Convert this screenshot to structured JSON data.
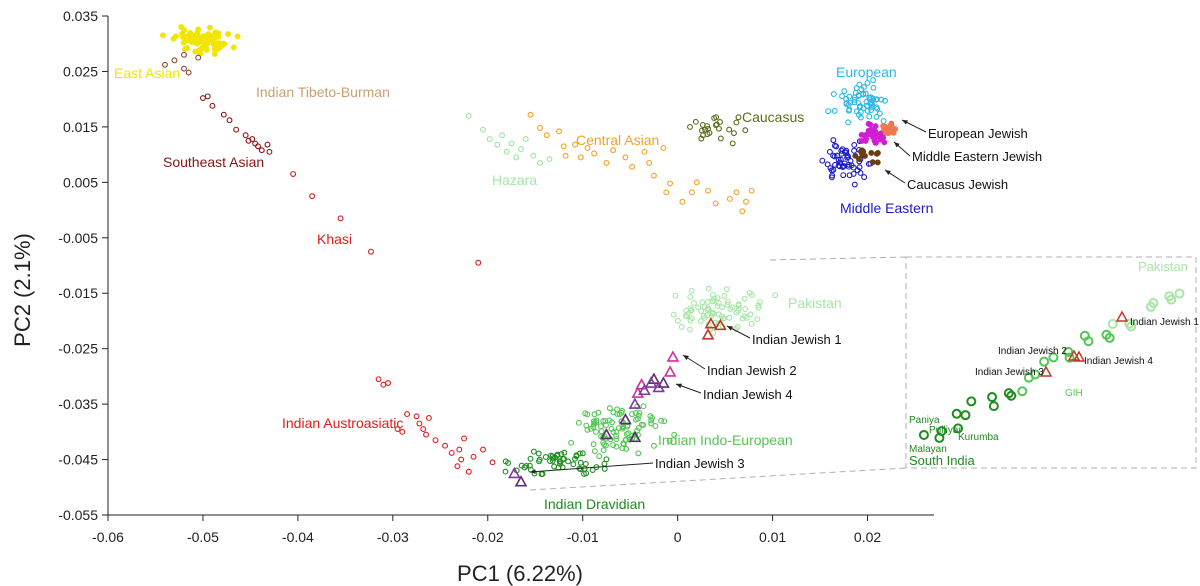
{
  "chart_data": {
    "type": "scatter",
    "title": "",
    "xlabel": "PC1 (6.22%)",
    "ylabel": "PC2 (2.1%)",
    "xlim": [
      -0.06,
      0.027
    ],
    "ylim": [
      -0.055,
      0.035
    ],
    "x_ticks": [
      -0.06,
      -0.05,
      -0.04,
      -0.03,
      -0.02,
      -0.01,
      0,
      0.01,
      0.02
    ],
    "x_tick_labels": [
      "-0.06",
      "-0.05",
      "-0.04",
      "-0.03",
      "-0.02",
      "-0.01",
      "0",
      "0.01",
      "0.02"
    ],
    "y_ticks": [
      0.035,
      0.025,
      0.015,
      0.005,
      -0.005,
      -0.015,
      -0.025,
      -0.035,
      -0.045,
      -0.055
    ],
    "y_tick_labels": [
      "0.035",
      "0.025",
      "0.015",
      "0.005",
      "-0.005",
      "-0.015",
      "-0.025",
      "-0.035",
      "-0.045",
      "-0.055"
    ],
    "grid": false,
    "series": [
      {
        "name": "East Asian",
        "color": "#f2e600",
        "filled": true,
        "center": [
          -0.05,
          0.0305
        ],
        "spread": [
          0.0032,
          0.0022
        ],
        "count": 70
      },
      {
        "name": "Indian Tibeto-Burman",
        "color": "#8b4a2a",
        "filled": false,
        "points": [
          [
            -0.053,
            0.027
          ],
          [
            -0.052,
            0.0255
          ],
          [
            -0.0505,
            0.0275
          ],
          [
            -0.054,
            0.0262
          ],
          [
            -0.0515,
            0.0248
          ],
          [
            -0.052,
            0.028
          ]
        ]
      },
      {
        "name": "Southeast Asian",
        "color": "#8b1414",
        "filled": false,
        "points": [
          [
            -0.05,
            0.0202
          ],
          [
            -0.0495,
            0.0205
          ],
          [
            -0.049,
            0.0188
          ],
          [
            -0.0478,
            0.0172
          ],
          [
            -0.0472,
            0.0162
          ],
          [
            -0.0465,
            0.0145
          ],
          [
            -0.0455,
            0.0135
          ],
          [
            -0.0448,
            0.0128
          ],
          [
            -0.0442,
            0.0115
          ],
          [
            -0.0438,
            0.0108
          ],
          [
            -0.0432,
            0.0118
          ],
          [
            -0.043,
            0.0105
          ],
          [
            -0.0445,
            0.012
          ],
          [
            -0.0452,
            0.0125
          ]
        ]
      },
      {
        "name": "Khasi",
        "color": "#cc1f1f",
        "filled": false,
        "points": [
          [
            -0.0405,
            0.0065
          ],
          [
            -0.0385,
            0.0025
          ],
          [
            -0.0355,
            -0.0015
          ],
          [
            -0.0323,
            -0.0075
          ],
          [
            -0.021,
            -0.0095
          ]
        ]
      },
      {
        "name": "Indian Austroasiatic",
        "color": "#e31a1c",
        "filled": false,
        "points": [
          [
            -0.0315,
            -0.0305
          ],
          [
            -0.031,
            -0.0315
          ],
          [
            -0.0305,
            -0.0312
          ],
          [
            -0.0285,
            -0.0368
          ],
          [
            -0.0275,
            -0.0372
          ],
          [
            -0.0272,
            -0.0385
          ],
          [
            -0.0268,
            -0.0395
          ],
          [
            -0.0265,
            -0.0405
          ],
          [
            -0.0262,
            -0.0375
          ],
          [
            -0.0255,
            -0.0415
          ],
          [
            -0.0295,
            -0.0395
          ],
          [
            -0.029,
            -0.04
          ],
          [
            -0.0245,
            -0.0425
          ],
          [
            -0.0238,
            -0.0438
          ],
          [
            -0.023,
            -0.0432
          ],
          [
            -0.0225,
            -0.0412
          ],
          [
            -0.0205,
            -0.0432
          ],
          [
            -0.0215,
            -0.0445
          ],
          [
            -0.0232,
            -0.0462
          ],
          [
            -0.022,
            -0.0472
          ],
          [
            -0.0195,
            -0.0455
          ],
          [
            -0.0228,
            -0.045
          ]
        ]
      },
      {
        "name": "Central Asian",
        "color": "#f4a023",
        "filled": false,
        "points": [
          [
            -0.0155,
            0.0172
          ],
          [
            -0.0145,
            0.0148
          ],
          [
            -0.0138,
            0.0135
          ],
          [
            -0.0125,
            0.0142
          ],
          [
            -0.012,
            0.0115
          ],
          [
            -0.0118,
            0.0098
          ],
          [
            -0.0108,
            0.0118
          ],
          [
            -0.0102,
            0.0095
          ],
          [
            -0.0095,
            0.0112
          ],
          [
            -0.0088,
            0.0102
          ],
          [
            -0.0075,
            0.0085
          ],
          [
            -0.0068,
            0.0108
          ],
          [
            -0.0055,
            0.0095
          ],
          [
            -0.0048,
            0.0078
          ],
          [
            -0.0035,
            0.0105
          ],
          [
            -0.003,
            0.0085
          ],
          [
            -0.0015,
            0.0112
          ],
          [
            -0.0025,
            0.0062
          ],
          [
            -0.0008,
            0.0048
          ],
          [
            0.0005,
            0.0015
          ],
          [
            0.0015,
            0.0032
          ],
          [
            0.002,
            0.005
          ],
          [
            0.0032,
            0.0035
          ],
          [
            0.004,
            0.0012
          ],
          [
            0.0055,
            0.002
          ],
          [
            0.0062,
            0.0032
          ],
          [
            0.0068,
            -0.0002
          ],
          [
            0.0072,
            0.0015
          ],
          [
            0.0078,
            0.0035
          ],
          [
            -0.0012,
            0.0032
          ]
        ]
      },
      {
        "name": "Caucasus",
        "color": "#5a6e1e",
        "filled": false,
        "center": [
          0.0035,
          0.0148
        ],
        "spread": [
          0.0035,
          0.0022
        ],
        "count": 24
      },
      {
        "name": "Hazara",
        "color": "#9be59b",
        "filled": false,
        "points": [
          [
            -0.022,
            0.017
          ],
          [
            -0.0205,
            0.0145
          ],
          [
            -0.0198,
            0.0128
          ],
          [
            -0.019,
            0.0118
          ],
          [
            -0.0185,
            0.0135
          ],
          [
            -0.018,
            0.0105
          ],
          [
            -0.0175,
            0.012
          ],
          [
            -0.017,
            0.0095
          ],
          [
            -0.0165,
            0.011
          ],
          [
            -0.016,
            0.0128
          ],
          [
            -0.0152,
            0.0098
          ],
          [
            -0.0145,
            0.0085
          ],
          [
            -0.0135,
            0.0092
          ]
        ]
      },
      {
        "name": "European",
        "color": "#29b8e6",
        "filled": false,
        "center": [
          0.0195,
          0.0195
        ],
        "spread": [
          0.0028,
          0.0032
        ],
        "count": 60
      },
      {
        "name": "Middle Eastern",
        "color": "#1b1bc7",
        "filled": false,
        "center": [
          0.018,
          0.0085
        ],
        "spread": [
          0.0022,
          0.0032
        ],
        "count": 55
      },
      {
        "name": "European Jewish",
        "color": "#f07850",
        "filled": true,
        "center": [
          0.0222,
          0.0148
        ],
        "spread": [
          0.0008,
          0.0012
        ],
        "count": 14
      },
      {
        "name": "Middle Eastern Jewish",
        "color": "#d21ed2",
        "filled": true,
        "center": [
          0.0205,
          0.0135
        ],
        "spread": [
          0.0015,
          0.0018
        ],
        "count": 30
      },
      {
        "name": "Caucasus Jewish",
        "color": "#6b3d10",
        "filled": true,
        "center": [
          0.0198,
          0.0098
        ],
        "spread": [
          0.0012,
          0.0012
        ],
        "count": 14
      },
      {
        "name": "Pakistan",
        "color": "#a6e6a6",
        "filled": false,
        "center": [
          0.0035,
          -0.0185
        ],
        "spread": [
          0.0055,
          0.004
        ],
        "count": 80
      },
      {
        "name": "Indian Indo-European",
        "color": "#55c555",
        "filled": false,
        "center": [
          -0.006,
          -0.0395
        ],
        "spread": [
          0.0045,
          0.0042
        ],
        "count": 95
      },
      {
        "name": "Indian Dravidian",
        "color": "#1e8c1e",
        "filled": false,
        "center": [
          -0.0125,
          -0.0455
        ],
        "spread": [
          0.0045,
          0.0025
        ],
        "count": 55
      },
      {
        "name": "Indian Jewish 1",
        "color": "#c0392b",
        "marker": "triangle",
        "filled": false,
        "points": [
          [
            0.0035,
            -0.0205
          ],
          [
            0.0045,
            -0.0208
          ],
          [
            0.0032,
            -0.0225
          ]
        ]
      },
      {
        "name": "Indian Jewish 2",
        "color": "#d2309c",
        "marker": "triangle",
        "filled": false,
        "points": [
          [
            -0.0005,
            -0.0265
          ],
          [
            -0.0038,
            -0.0315
          ],
          [
            -0.0042,
            -0.033
          ],
          [
            -0.0008,
            -0.0292
          ]
        ]
      },
      {
        "name": "Indian Jewish 3",
        "color": "#5a2e6e",
        "marker": "triangle",
        "filled": false,
        "points": [
          [
            -0.0015,
            -0.0312
          ],
          [
            -0.0025,
            -0.0305
          ],
          [
            -0.0055,
            -0.0378
          ],
          [
            -0.0075,
            -0.0405
          ],
          [
            -0.0045,
            -0.041
          ],
          [
            -0.0165,
            -0.049
          ]
        ]
      },
      {
        "name": "Indian Jewish 4",
        "color": "#7c3a9c",
        "marker": "triangle",
        "filled": false,
        "points": [
          [
            -0.0028,
            -0.0312
          ],
          [
            -0.002,
            -0.032
          ],
          [
            -0.0035,
            -0.0325
          ],
          [
            -0.0045,
            -0.035
          ],
          [
            -0.0172,
            -0.0475
          ]
        ]
      }
    ],
    "labels": [
      {
        "text": "East Asian",
        "color": "#f2e600"
      },
      {
        "text": "Indian Tibeto-Burman",
        "color": "#c8a070"
      },
      {
        "text": "Southeast Asian",
        "color": "#8b1414"
      },
      {
        "text": "Khasi",
        "color": "#e31a1c"
      },
      {
        "text": "Central Asian",
        "color": "#f4a023"
      },
      {
        "text": "Hazara",
        "color": "#a6e6a6"
      },
      {
        "text": "Caucasus",
        "color": "#5a6e1e"
      },
      {
        "text": "European",
        "color": "#29b8e6"
      },
      {
        "text": "European Jewish",
        "color": "#111111"
      },
      {
        "text": "Middle Eastern Jewish",
        "color": "#111111"
      },
      {
        "text": "Caucasus Jewish",
        "color": "#111111"
      },
      {
        "text": "Middle Eastern",
        "color": "#1b1bc7"
      },
      {
        "text": "Pakistan",
        "color": "#a6e6a6"
      },
      {
        "text": "Indian Jewish 1",
        "color": "#111111"
      },
      {
        "text": "Indian Jewish 2",
        "color": "#111111"
      },
      {
        "text": "Indian Jewish 4",
        "color": "#111111"
      },
      {
        "text": "Indian Austroasiatic",
        "color": "#e31a1c"
      },
      {
        "text": "Indian Indo-European",
        "color": "#55c555"
      },
      {
        "text": "Indian Jewish 3",
        "color": "#111111"
      },
      {
        "text": "Indian Dravidian",
        "color": "#1e8c1e"
      }
    ],
    "inset": {
      "labels": [
        {
          "text": "Pakistan",
          "color": "#a6e6a6"
        },
        {
          "text": "Indian Jewish 1",
          "color": "#111111"
        },
        {
          "text": "Indian Jewish 2",
          "color": "#111111"
        },
        {
          "text": "Indian Jewish 4",
          "color": "#111111"
        },
        {
          "text": "Indian Jewish 3",
          "color": "#111111"
        },
        {
          "text": "GIH",
          "color": "#55c555"
        },
        {
          "text": "Paniya",
          "color": "#1e8c1e"
        },
        {
          "text": "Pulliyar",
          "color": "#1e8c1e"
        },
        {
          "text": "Kurumba",
          "color": "#1e8c1e"
        },
        {
          "text": "Malayan",
          "color": "#1e8c1e"
        },
        {
          "text": "South India",
          "color": "#1e8c1e"
        }
      ]
    }
  }
}
